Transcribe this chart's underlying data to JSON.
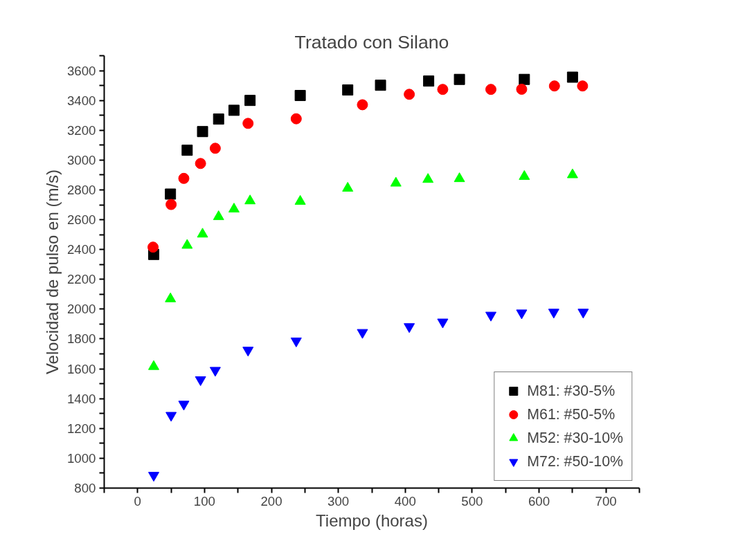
{
  "chart_data": {
    "type": "scatter",
    "title": "Tratado con Silano",
    "xlabel": "Tiempo (horas)",
    "ylabel": "Velocidad de pulso en (m/s)",
    "xlim": [
      -50,
      750
    ],
    "ylim": [
      800,
      3700
    ],
    "xticks": [
      {
        "value": -50,
        "label": null
      },
      0,
      {
        "value": 50,
        "label": null
      },
      100,
      {
        "value": 150,
        "label": null
      },
      200,
      {
        "value": 250,
        "label": null
      },
      300,
      {
        "value": 350,
        "label": null
      },
      400,
      {
        "value": 450,
        "label": null
      },
      500,
      {
        "value": 550,
        "label": null
      },
      600,
      {
        "value": 650,
        "label": null
      },
      700,
      {
        "value": 750,
        "label": null
      }
    ],
    "yticks": [
      800,
      {
        "value": 900,
        "label": null
      },
      1000,
      {
        "value": 1100,
        "label": null
      },
      1200,
      {
        "value": 1300,
        "label": null
      },
      1400,
      {
        "value": 1500,
        "label": null
      },
      1600,
      {
        "value": 1700,
        "label": null
      },
      1800,
      {
        "value": 1900,
        "label": null
      },
      2000,
      {
        "value": 2100,
        "label": null
      },
      2200,
      {
        "value": 2300,
        "label": null
      },
      2400,
      {
        "value": 2500,
        "label": null
      },
      2600,
      {
        "value": 2700,
        "label": null
      },
      2800,
      {
        "value": 2900,
        "label": null
      },
      3000,
      {
        "value": 3100,
        "label": null
      },
      3200,
      {
        "value": 3300,
        "label": null
      },
      3400,
      {
        "value": 3500,
        "label": null
      },
      3600,
      {
        "value": 3700,
        "label": null
      }
    ],
    "grid": false,
    "legend": "bottom right",
    "series": [
      {
        "name": "M81: #30-5%",
        "color": "#000000",
        "marker": "square",
        "x": [
          24,
          49,
          74,
          97,
          121,
          144,
          168,
          243,
          314,
          363,
          435,
          481,
          578,
          650
        ],
        "values": [
          2367,
          2772,
          3066,
          3191,
          3275,
          3334,
          3400,
          3433,
          3470,
          3502,
          3530,
          3541,
          3541,
          3556
        ]
      },
      {
        "name": "M61: #50-5%",
        "color": "#ff0000",
        "marker": "circle",
        "x": [
          23,
          50,
          69,
          94,
          116,
          165,
          237,
          336,
          406,
          456,
          528,
          574,
          623,
          665
        ],
        "values": [
          2416,
          2702,
          2877,
          2977,
          3079,
          3246,
          3277,
          3371,
          3441,
          3474,
          3474,
          3475,
          3497,
          3497
        ]
      },
      {
        "name": "M52: #30-10%",
        "color": "#00ff00",
        "marker": "triangle",
        "x": [
          24,
          49,
          74,
          97,
          121,
          144,
          168,
          243,
          314,
          386,
          434,
          481,
          578,
          650
        ],
        "values": [
          1615,
          2069,
          2428,
          2503,
          2620,
          2671,
          2726,
          2723,
          2811,
          2845,
          2870,
          2875,
          2890,
          2901
        ]
      },
      {
        "name": "M72: #50-10%",
        "color": "#0000ff",
        "x": [
          24,
          50,
          69,
          94,
          116,
          165,
          237,
          336,
          406,
          456,
          528,
          574,
          622,
          666
        ],
        "values": [
          886,
          1288,
          1363,
          1527,
          1590,
          1725,
          1787,
          1844,
          1883,
          1914,
          1960,
          1975,
          1980,
          1980
        ]
      }
    ]
  }
}
